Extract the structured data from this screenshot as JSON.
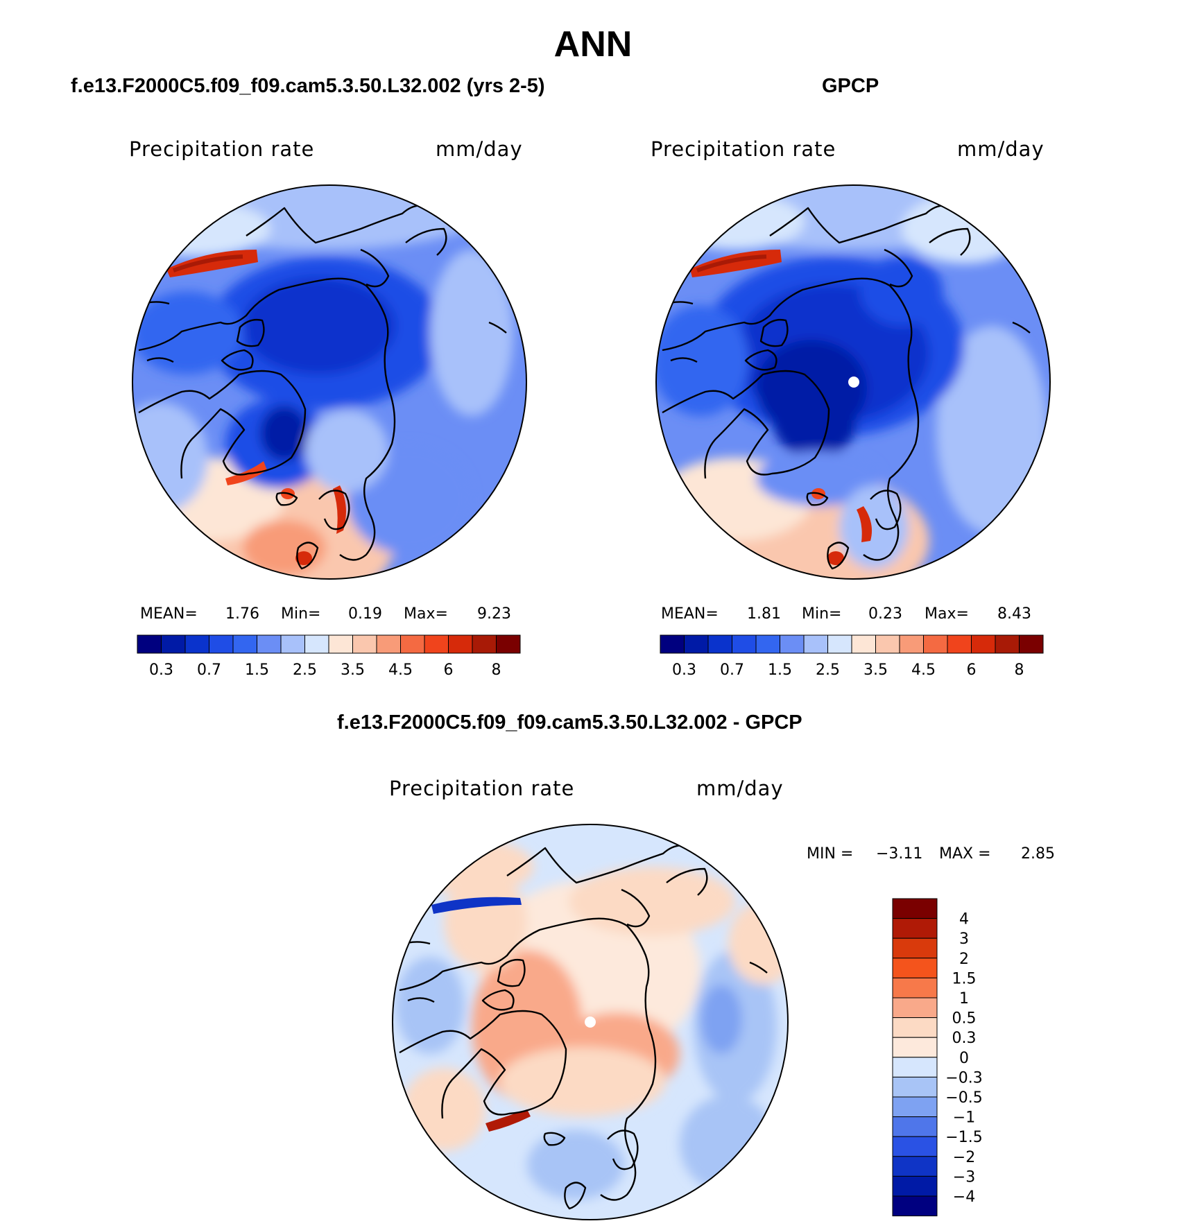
{
  "header": {
    "title": "ANN",
    "left_title": "f.e13.F2000C5.f09_f09.cam5.3.50.L32.002 (yrs 2-5)",
    "right_title": "GPCP",
    "diff_title": "f.e13.F2000C5.f09_f09.cam5.3.50.L32.002 - GPCP"
  },
  "chart_data": [
    {
      "type": "heatmap",
      "projection": "north polar stereographic",
      "variable_label": "Precipitation rate",
      "units": "mm/day",
      "stats": {
        "mean_label": "MEAN=",
        "mean": "1.76",
        "min_label": "Min=",
        "min": "0.19",
        "max_label": "Max=",
        "max": "9.23"
      },
      "colorbar": {
        "orientation": "horizontal",
        "labels": [
          "0.3",
          "0.7",
          "1.5",
          "2.5",
          "3.5",
          "4.5",
          "6",
          "8"
        ],
        "colors": [
          "#00007f",
          "#001aa6",
          "#0a33cc",
          "#1f4de6",
          "#3366f0",
          "#6b8ef5",
          "#a8c1fa",
          "#d6e6fd",
          "#fde6d6",
          "#fac7ae",
          "#f89b78",
          "#f46a42",
          "#f0441c",
          "#d62a0a",
          "#a81a06",
          "#7a0000"
        ]
      },
      "description_regions": "Deep blue over Arctic Ocean and Greenland interior; red along southern Greenland and Norwegian coasts and near Alaska panhandle"
    },
    {
      "type": "heatmap",
      "projection": "north polar stereographic",
      "variable_label": "Precipitation rate",
      "units": "mm/day",
      "stats": {
        "mean_label": "MEAN=",
        "mean": "1.81",
        "min_label": "Min=",
        "min": "0.23",
        "max_label": "Max=",
        "max": "8.43"
      },
      "colorbar": {
        "orientation": "horizontal",
        "labels": [
          "0.3",
          "0.7",
          "1.5",
          "2.5",
          "3.5",
          "4.5",
          "6",
          "8"
        ],
        "colors": [
          "#00007f",
          "#001aa6",
          "#0a33cc",
          "#1f4de6",
          "#3366f0",
          "#6b8ef5",
          "#a8c1fa",
          "#d6e6fd",
          "#fde6d6",
          "#fac7ae",
          "#f89b78",
          "#f46a42",
          "#f0441c",
          "#d62a0a",
          "#a81a06",
          "#7a0000"
        ]
      }
    },
    {
      "type": "heatmap",
      "projection": "north polar stereographic",
      "variable_label": "Precipitation rate",
      "units": "mm/day",
      "stats": {
        "min_label": "MIN =",
        "min": "−3.11",
        "max_label": "MAX =",
        "max": "2.85"
      },
      "colorbar": {
        "orientation": "vertical",
        "labels": [
          "4",
          "3",
          "2",
          "1.5",
          "1",
          "0.5",
          "0.3",
          "0",
          "−0.3",
          "−0.5",
          "−1",
          "−1.5",
          "−2",
          "−3",
          "−4"
        ],
        "colors": [
          "#7a0000",
          "#b01a06",
          "#d93a0c",
          "#f4541c",
          "#f7794a",
          "#f9a98a",
          "#fcdac4",
          "#fde9dc",
          "#d6e6fd",
          "#a8c4f6",
          "#7ea2f2",
          "#4f76ea",
          "#2a52e4",
          "#0f34c6",
          "#001aa6",
          "#000080"
        ]
      }
    }
  ]
}
